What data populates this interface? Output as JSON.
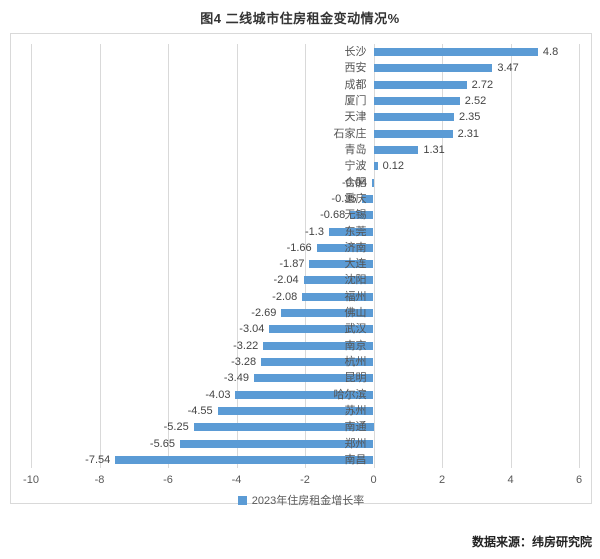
{
  "title": "图4  二线城市住房租金变动情况%",
  "source": "数据来源：纬房研究院",
  "chart_data": {
    "type": "bar",
    "orientation": "horizontal",
    "title": "图4  二线城市住房租金变动情况%",
    "categories": [
      "长沙",
      "西安",
      "成都",
      "厦门",
      "天津",
      "石家庄",
      "青岛",
      "宁波",
      "合肥",
      "重庆",
      "无锡",
      "东莞",
      "济南",
      "大连",
      "沈阳",
      "福州",
      "佛山",
      "武汉",
      "南京",
      "杭州",
      "昆明",
      "哈尔滨",
      "苏州",
      "南通",
      "郑州",
      "南昌"
    ],
    "values": [
      4.8,
      3.47,
      2.72,
      2.52,
      2.35,
      2.31,
      1.31,
      0.12,
      -0.04,
      -0.35,
      -0.68,
      -1.3,
      -1.66,
      -1.87,
      -2.04,
      -2.08,
      -2.69,
      -3.04,
      -3.22,
      -3.28,
      -3.49,
      -4.03,
      -4.55,
      -5.25,
      -5.65,
      -7.54
    ],
    "value_labels": [
      "4.8",
      "3.47",
      "2.72",
      "2.52",
      "2.35",
      "2.31",
      "1.31",
      "0.12",
      "-0.04",
      "-0.35",
      "-0.68",
      "-1.3",
      "-1.66",
      "-1.87",
      "-2.04",
      "-2.08",
      "-2.69",
      "-3.04",
      "-3.22",
      "-3.28",
      "-3.49",
      "-4.03",
      "-4.55",
      "-5.25",
      "-5.65",
      "-7.54"
    ],
    "xlabel": "",
    "ylabel": "",
    "xlim": [
      -10,
      6
    ],
    "x_ticks": [
      -10,
      -8,
      -6,
      -4,
      -2,
      0,
      2,
      4,
      6
    ],
    "grid": true,
    "legend_label": "2023年住房租金增长率",
    "legend_position": "bottom",
    "bar_color": "#5b9bd5",
    "grid_color": "#d9d9d9"
  }
}
